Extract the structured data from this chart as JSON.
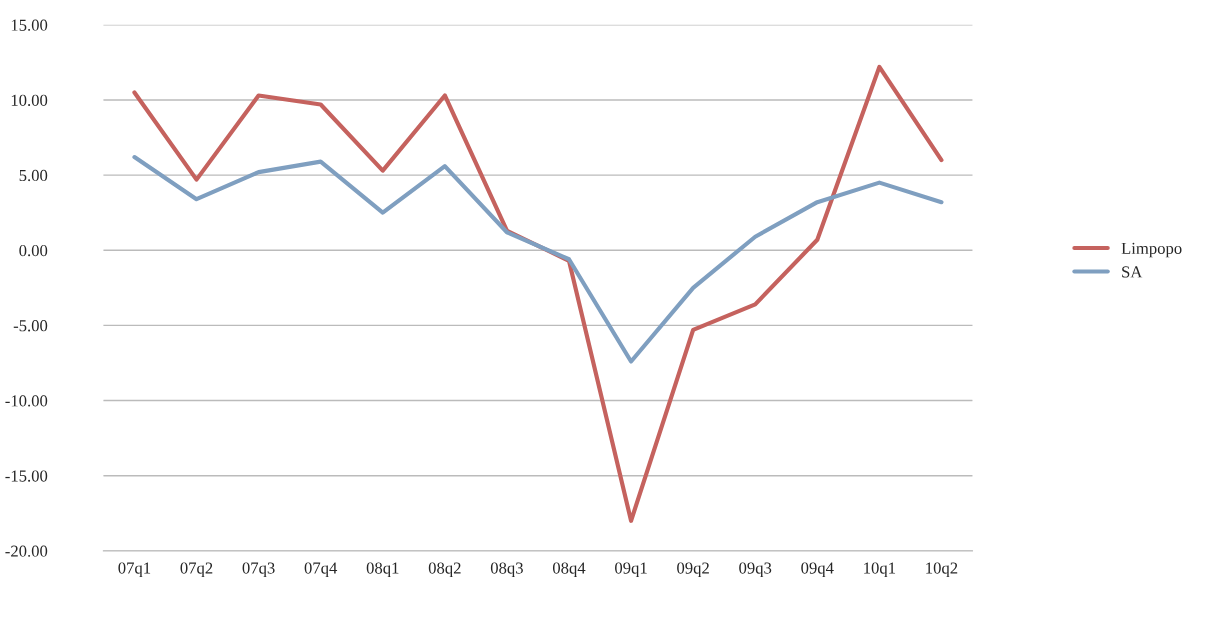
{
  "chart_data": {
    "type": "line",
    "categories": [
      "07q1",
      "07q2",
      "07q3",
      "07q4",
      "08q1",
      "08q2",
      "08q3",
      "08q4",
      "09q1",
      "09q2",
      "09q3",
      "09q4",
      "10q1",
      "10q2"
    ],
    "series": [
      {
        "name": "Limpopo",
        "color": "#c5625e",
        "values": [
          10.5,
          4.7,
          10.3,
          9.7,
          5.3,
          10.3,
          1.3,
          -0.7,
          -18.0,
          -5.3,
          -3.6,
          0.7,
          12.2,
          6.0
        ]
      },
      {
        "name": "SA",
        "color": "#7f9fc0",
        "values": [
          6.2,
          3.4,
          5.2,
          5.9,
          2.5,
          5.6,
          1.2,
          -0.6,
          -7.4,
          -2.5,
          0.9,
          3.2,
          4.5,
          3.2
        ]
      }
    ],
    "ylim": [
      -20,
      15
    ],
    "yticks": [
      {
        "value": -20,
        "label": "-20.00"
      },
      {
        "value": -15,
        "label": "-15.00"
      },
      {
        "value": -10,
        "label": "-10.00"
      },
      {
        "value": -5,
        "label": "-5.00"
      },
      {
        "value": 0,
        "label": "0.00"
      },
      {
        "value": 5,
        "label": "5.00"
      },
      {
        "value": 10,
        "label": "10.00"
      },
      {
        "value": 15,
        "label": "15.00"
      }
    ],
    "grid": "y",
    "legend": "right",
    "marker": "none",
    "line_style": "solid"
  }
}
